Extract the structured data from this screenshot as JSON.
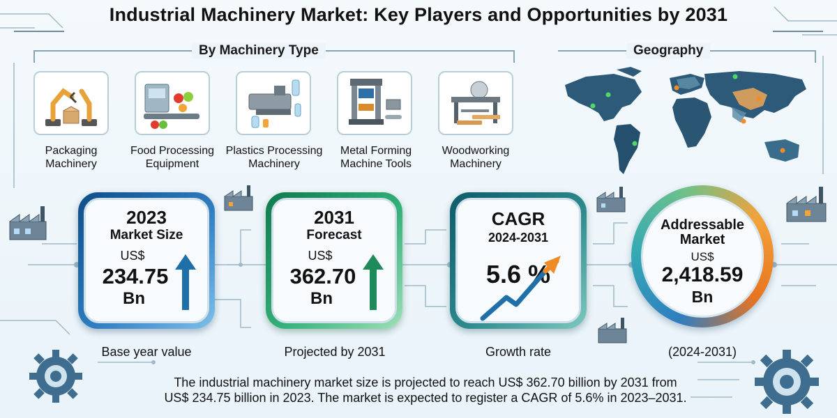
{
  "title": "Industrial Machinery Market: Key Players and Opportunities by 2031",
  "machinery_section": {
    "heading": "By Machinery Type",
    "items": [
      {
        "label": "Packaging Machinery",
        "icon": "robotic-arm-icon"
      },
      {
        "label": "Food Processing Equipment",
        "icon": "food-processing-icon"
      },
      {
        "label": "Plastics Processing Machinery",
        "icon": "injection-molding-icon"
      },
      {
        "label": "Metal Forming Machine Tools",
        "icon": "hydraulic-press-icon"
      },
      {
        "label": "Woodworking Machinery",
        "icon": "table-saw-icon"
      }
    ]
  },
  "geography_section": {
    "heading": "Geography",
    "icon": "world-map-icon"
  },
  "metrics": {
    "market_size": {
      "year": "2023",
      "label": "Market Size",
      "currency": "US$",
      "value": "234.75",
      "unit": "Bn",
      "caption": "Base year value"
    },
    "forecast": {
      "year": "2031",
      "label": "Forecast",
      "currency": "US$",
      "value": "362.70",
      "unit": "Bn",
      "caption": "Projected by 2031"
    },
    "cagr": {
      "label": "CAGR",
      "period": "2024-2031",
      "value": "5.6 %",
      "caption": "Growth rate"
    },
    "addressable": {
      "label": "Addressable Market",
      "currency": "US$",
      "value": "2,418.59",
      "unit": "Bn",
      "caption": "(2024-2031)"
    }
  },
  "summary": "The industrial machinery market size is projected to reach US$ 362.70 billion by 2031 from US$ 234.75 billion in 2023. The market is expected to register a CAGR of 5.6% in 2023–2031.",
  "colors": {
    "blue_card": "#1f63a3",
    "green_card": "#2a9a66",
    "teal_card": "#257c82",
    "arrow_blue": "#1f6fa8",
    "arrow_green": "#1f8a5a",
    "arrow_orange": "#f08a24"
  }
}
